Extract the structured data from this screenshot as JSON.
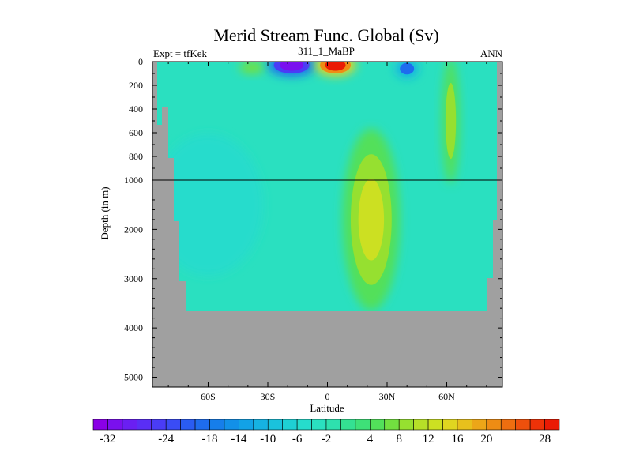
{
  "chart_data": {
    "type": "heatmap",
    "title": "Merid Stream Func. Global (Sv)",
    "subtitle_left": "Expt = tfKek",
    "subtitle_center": "311_1_MaBP",
    "subtitle_right": "ANN",
    "xlabel": "Latitude",
    "ylabel": "Depth (in m)",
    "x_ticks": [
      "60S",
      "30S",
      "0",
      "30N",
      "60N"
    ],
    "x_tick_values": [
      -60,
      -30,
      0,
      30,
      60
    ],
    "xlim": [
      -88,
      88
    ],
    "y_ticks_upper": [
      "0",
      "200",
      "400",
      "600",
      "800",
      "1000"
    ],
    "y_tick_values_upper": [
      0,
      200,
      400,
      600,
      800,
      1000
    ],
    "y_ticks_lower": [
      "2000",
      "3000",
      "4000",
      "5000"
    ],
    "y_tick_values_lower": [
      2000,
      3000,
      4000,
      5000
    ],
    "ylim": [
      0,
      5200
    ],
    "axis_break_depth": 1000,
    "land_color": "#a0a0a0",
    "ocean_background_value": -3,
    "colorbar": {
      "levels": [
        -34,
        -32,
        -30,
        -28,
        -26,
        -24,
        -22,
        -20,
        -18,
        -16,
        -14,
        -12,
        -10,
        -8,
        -6,
        -4,
        -2,
        0,
        2,
        4,
        6,
        8,
        10,
        12,
        14,
        16,
        18,
        20,
        22,
        24,
        26,
        28,
        30
      ],
      "colors": [
        "#8a00e6",
        "#7a10ee",
        "#6a1ff2",
        "#5a2ef5",
        "#4a3cf6",
        "#3a4cf5",
        "#2a5cf2",
        "#1e6cee",
        "#167eea",
        "#1290e8",
        "#12a2e6",
        "#16b2e2",
        "#1ac2dc",
        "#1ed0d4",
        "#26dccc",
        "#2ae0c0",
        "#2ee0ae",
        "#34e092",
        "#3ee078",
        "#52e05a",
        "#72e040",
        "#96e030",
        "#b6e028",
        "#cce022",
        "#e0d620",
        "#e8c01c",
        "#eca618",
        "#ee8c14",
        "#ee6e10",
        "#ee500c",
        "#ee3208",
        "#ea1a04"
      ],
      "tick_labels": [
        "-32",
        "-24",
        "-18",
        "-14",
        "-10",
        "-6",
        "-2",
        "4",
        "8",
        "12",
        "16",
        "20",
        "28"
      ],
      "tick_values": [
        -32,
        -24,
        -18,
        -14,
        -10,
        -6,
        -2,
        4,
        8,
        12,
        16,
        20,
        28
      ]
    },
    "features": [
      {
        "name": "southern-negative-cell",
        "lat": -18,
        "depth": 30,
        "value": -33
      },
      {
        "name": "northern-surface-positive-cell",
        "lat": 4,
        "depth": 30,
        "value": 31
      },
      {
        "name": "northern-negative-cell",
        "lat": 40,
        "depth": 60,
        "value": -22
      },
      {
        "name": "southern-surface-weak-positive",
        "lat": -38,
        "depth": 50,
        "value": 7
      },
      {
        "name": "deep-positive-plume",
        "lat": 22,
        "depth": 1800,
        "value": 13
      },
      {
        "name": "high-latitude-positive-band",
        "lat": 62,
        "depth": 500,
        "value": 8
      },
      {
        "name": "southern-deep-negative-region",
        "lat": -60,
        "depth": 1500,
        "value": -7
      }
    ]
  }
}
